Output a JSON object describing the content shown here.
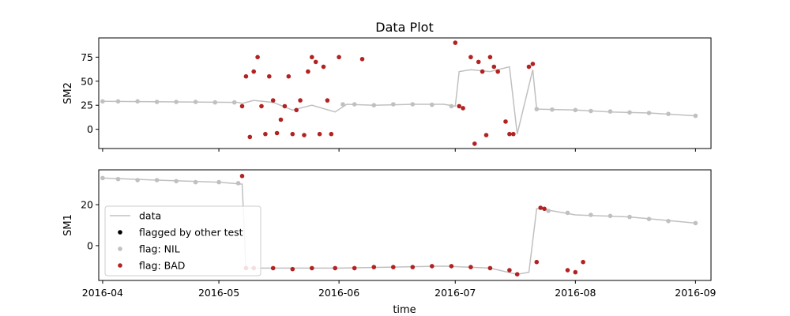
{
  "figure": {
    "title": "Data Plot",
    "xlabel": "time"
  },
  "chart_data": [
    {
      "type": "scatter",
      "title": "Data Plot",
      "ylabel": "SM2",
      "xlabel": "",
      "ylim": [
        -20,
        95
      ],
      "xlim": [
        "2016-03-31",
        "2016-09-05"
      ],
      "yticks": [
        0,
        25,
        50,
        75
      ],
      "grid": false,
      "series": [
        {
          "name": "data",
          "color": "#c0c0c0",
          "kind": "line",
          "x": [
            "2016-04-01",
            "2016-05-06",
            "2016-05-07",
            "2016-05-10",
            "2016-05-15",
            "2016-05-20",
            "2016-05-25",
            "2016-05-31",
            "2016-06-03",
            "2016-06-10",
            "2016-06-20",
            "2016-06-28",
            "2016-07-01",
            "2016-07-02",
            "2016-07-05",
            "2016-07-10",
            "2016-07-15",
            "2016-07-17",
            "2016-07-21",
            "2016-07-22",
            "2016-08-01",
            "2016-08-10",
            "2016-08-20",
            "2016-09-01"
          ],
          "y": [
            29,
            28,
            27,
            30,
            28,
            20,
            25,
            18,
            26,
            25,
            26,
            26,
            24,
            60,
            62,
            60,
            65,
            -5,
            62,
            21,
            20,
            18,
            17,
            14
          ]
        },
        {
          "name": "flag: NIL",
          "color": "#c0c0c0",
          "kind": "points",
          "x": [
            "2016-04-01",
            "2016-04-05",
            "2016-04-10",
            "2016-04-15",
            "2016-04-20",
            "2016-04-25",
            "2016-04-30",
            "2016-05-05",
            "2016-06-02",
            "2016-06-05",
            "2016-06-10",
            "2016-06-15",
            "2016-06-20",
            "2016-06-25",
            "2016-06-30",
            "2016-07-22",
            "2016-07-26",
            "2016-08-01",
            "2016-08-05",
            "2016-08-10",
            "2016-08-15",
            "2016-08-20",
            "2016-08-25",
            "2016-09-01"
          ],
          "y": [
            29,
            29,
            29,
            28.5,
            28.5,
            28.5,
            28,
            28,
            26,
            26,
            25,
            26,
            26,
            25.5,
            24,
            21,
            20.5,
            20,
            19,
            18.5,
            17.5,
            17,
            16,
            14
          ]
        },
        {
          "name": "flag: BAD",
          "color": "#b22222",
          "kind": "points",
          "x": [
            "2016-05-07",
            "2016-05-08",
            "2016-05-09",
            "2016-05-10",
            "2016-05-11",
            "2016-05-12",
            "2016-05-13",
            "2016-05-14",
            "2016-05-15",
            "2016-05-16",
            "2016-05-17",
            "2016-05-18",
            "2016-05-19",
            "2016-05-20",
            "2016-05-21",
            "2016-05-22",
            "2016-05-23",
            "2016-05-24",
            "2016-05-25",
            "2016-05-26",
            "2016-05-27",
            "2016-05-28",
            "2016-05-29",
            "2016-05-30",
            "2016-06-01",
            "2016-06-07",
            "2016-07-01",
            "2016-07-02",
            "2016-07-03",
            "2016-07-05",
            "2016-07-06",
            "2016-07-07",
            "2016-07-08",
            "2016-07-09",
            "2016-07-10",
            "2016-07-11",
            "2016-07-12",
            "2016-07-14",
            "2016-07-15",
            "2016-07-16",
            "2016-07-20",
            "2016-07-21"
          ],
          "y": [
            24,
            55,
            -8,
            60,
            75,
            24,
            -5,
            55,
            30,
            -4,
            10,
            24,
            55,
            -5,
            20,
            30,
            -6,
            60,
            75,
            70,
            -5,
            65,
            30,
            -5,
            75,
            73,
            90,
            24,
            22,
            75,
            -15,
            70,
            60,
            -6,
            75,
            65,
            60,
            8,
            -5,
            -5,
            65,
            68
          ]
        }
      ]
    },
    {
      "type": "scatter",
      "title": "",
      "ylabel": "SM1",
      "xlabel": "time",
      "ylim": [
        -17,
        37
      ],
      "xlim": [
        "2016-03-31",
        "2016-09-05"
      ],
      "yticks": [
        0,
        20
      ],
      "xticks": [
        "2016-04",
        "2016-05",
        "2016-06",
        "2016-07",
        "2016-08",
        "2016-09"
      ],
      "grid": false,
      "legend": {
        "placement": "lower-left",
        "entries": [
          {
            "label": "data",
            "kind": "line",
            "color": "#c0c0c0"
          },
          {
            "label": "flagged by other test",
            "kind": "point",
            "color": "#000000"
          },
          {
            "label": "flag: NIL",
            "kind": "point",
            "color": "#c0c0c0"
          },
          {
            "label": "flag: BAD",
            "kind": "point",
            "color": "#b22222"
          }
        ]
      },
      "series": [
        {
          "name": "data",
          "color": "#c0c0c0",
          "kind": "line",
          "x": [
            "2016-04-01",
            "2016-04-15",
            "2016-05-01",
            "2016-05-07",
            "2016-05-08",
            "2016-06-01",
            "2016-06-15",
            "2016-06-28",
            "2016-07-10",
            "2016-07-17",
            "2016-07-20",
            "2016-07-22",
            "2016-07-23",
            "2016-08-01",
            "2016-08-15",
            "2016-09-01"
          ],
          "y": [
            33,
            32,
            31,
            30,
            -11,
            -11,
            -10.5,
            -10,
            -11,
            -14,
            -13,
            18,
            18,
            15,
            14,
            11
          ]
        },
        {
          "name": "flag: NIL",
          "color": "#c0c0c0",
          "kind": "points",
          "x": [
            "2016-04-01",
            "2016-04-05",
            "2016-04-10",
            "2016-04-15",
            "2016-04-20",
            "2016-04-25",
            "2016-05-01",
            "2016-05-06",
            "2016-07-25",
            "2016-07-30",
            "2016-08-05",
            "2016-08-10",
            "2016-08-15",
            "2016-08-20",
            "2016-08-25",
            "2016-09-01"
          ],
          "y": [
            33,
            32.5,
            32,
            32,
            31.5,
            31,
            31,
            30.5,
            17,
            16,
            15,
            14.5,
            14,
            13,
            12,
            11
          ]
        },
        {
          "name": "flag: BAD",
          "color": "#b22222",
          "kind": "points",
          "x": [
            "2016-05-07",
            "2016-05-08",
            "2016-05-10",
            "2016-05-15",
            "2016-05-20",
            "2016-05-25",
            "2016-05-31",
            "2016-06-05",
            "2016-06-10",
            "2016-06-15",
            "2016-06-20",
            "2016-06-25",
            "2016-06-30",
            "2016-07-05",
            "2016-07-10",
            "2016-07-15",
            "2016-07-17",
            "2016-07-22",
            "2016-07-23",
            "2016-07-24",
            "2016-07-30",
            "2016-08-01",
            "2016-08-03"
          ],
          "y": [
            34,
            -11,
            -11,
            -11,
            -11.5,
            -11,
            -11,
            -11,
            -10.5,
            -10.5,
            -10.5,
            -10,
            -10,
            -10.5,
            -11,
            -12,
            -14,
            -8,
            18.5,
            18,
            -12,
            -13,
            -8
          ]
        }
      ]
    }
  ]
}
